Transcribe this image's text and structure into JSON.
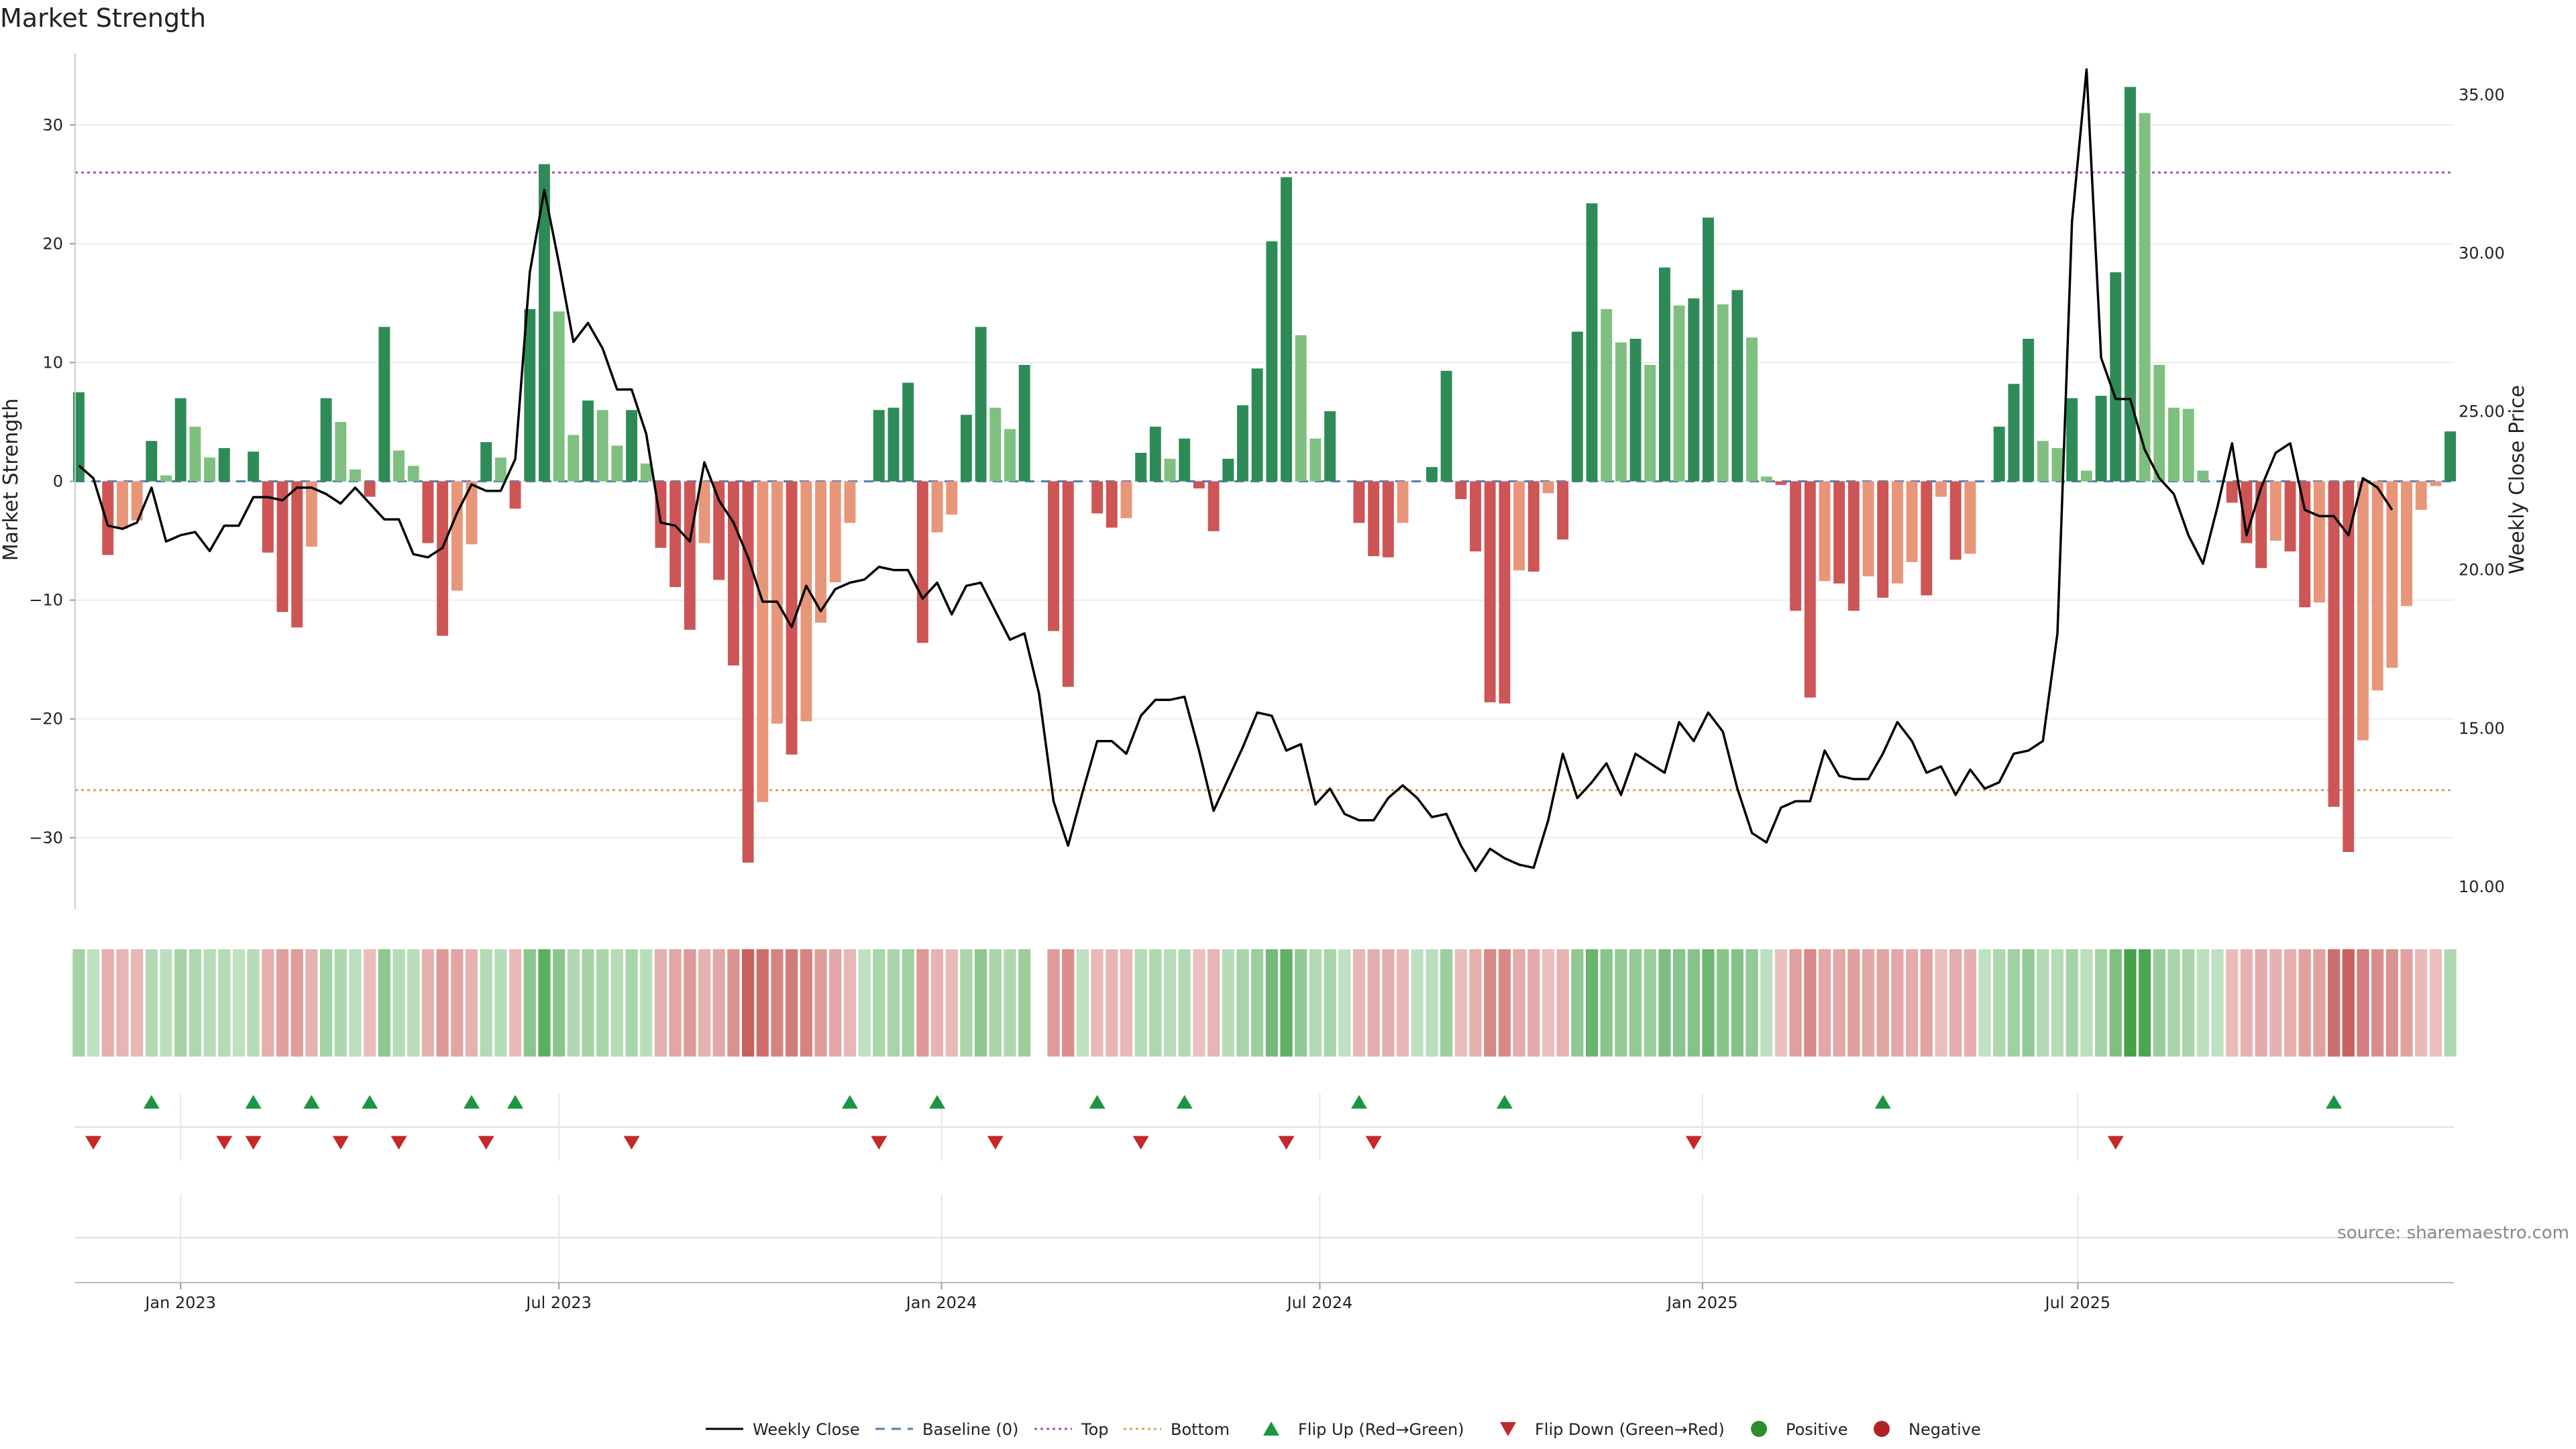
{
  "title": "Market Strength",
  "source": "source: sharemaestro.com",
  "colors": {
    "strong_green": "#2e8b57",
    "light_green": "#7fbf7f",
    "strong_red": "#cd5555",
    "light_red": "#e8967a",
    "top_line": "#b04fb0",
    "bottom_line": "#d9a25a",
    "baseline": "#4f7fb0",
    "price_line": "#000000",
    "flip_up": "#1a9641",
    "flip_down": "#c62828",
    "positive": "#2e8b2e",
    "negative": "#b22222"
  },
  "chart_data": {
    "type": "bar",
    "xlabel": "",
    "ylabel": "Market Strength",
    "y2label": "Weekly Close Price",
    "ylim": [
      -36,
      36
    ],
    "y2lim": [
      9.3,
      36.3
    ],
    "yticks": [
      30,
      20,
      10,
      0,
      -10,
      -20,
      -30
    ],
    "ytick_labels": [
      "30",
      "20",
      "10",
      "0",
      "−10",
      "−20",
      "−30"
    ],
    "y2ticks": [
      35,
      30,
      25,
      20,
      15,
      10
    ],
    "y2tick_labels": [
      "35.00",
      "30.00",
      "25.00",
      "20.00",
      "15.00",
      "10.00"
    ],
    "xticks": [
      {
        "index": 7,
        "label": "Jan 2023"
      },
      {
        "index": 33,
        "label": "Jul 2023"
      },
      {
        "index": 59.3,
        "label": "Jan 2024"
      },
      {
        "index": 85.3,
        "label": "Jul 2024"
      },
      {
        "index": 111.6,
        "label": "Jan 2025"
      },
      {
        "index": 137.4,
        "label": "Jul 2025"
      }
    ],
    "thresholds": {
      "top": 26,
      "bottom": -26,
      "baseline": 0
    },
    "grid": true,
    "legend_position": "bottom-center",
    "strength": [
      7.5,
      0,
      -6.2,
      -4,
      -3.3,
      3.4,
      0.5,
      7,
      4.6,
      2,
      2.8,
      0,
      2.5,
      -6,
      -11,
      -12.3,
      -5.5,
      7,
      5,
      1,
      -1.3,
      13,
      2.6,
      1.3,
      -5.2,
      -13,
      -9.2,
      -5.3,
      3.3,
      2,
      -2.3,
      14.5,
      26.7,
      14.3,
      3.9,
      6.8,
      6,
      3,
      6,
      1.5,
      -5.6,
      -8.9,
      -12.5,
      -5.2,
      -8.3,
      -15.5,
      -32.1,
      -27,
      -20.4,
      -23,
      -20.2,
      -11.9,
      -8.5,
      -3.5,
      0,
      6,
      6.2,
      8.3,
      -13.6,
      -4.3,
      -2.8,
      5.6,
      13,
      6.2,
      4.4,
      9.8,
      0,
      -12.6,
      -17.3,
      0,
      -2.7,
      -3.9,
      -3.1,
      2.4,
      4.6,
      1.9,
      3.6,
      -0.6,
      -4.2,
      1.9,
      6.4,
      9.5,
      20.2,
      25.6,
      12.3,
      3.6,
      5.9,
      0,
      -3.5,
      -6.3,
      -6.4,
      -3.5,
      0,
      1.2,
      9.3,
      -1.5,
      -5.9,
      -18.6,
      -18.7,
      -7.5,
      -7.6,
      -1,
      -4.9,
      12.6,
      23.4,
      14.5,
      11.7,
      12,
      9.8,
      18,
      14.8,
      15.4,
      22.2,
      14.9,
      16.1,
      12.1,
      0.4,
      -0.3,
      -10.9,
      -18.2,
      -8.4,
      -8.6,
      -10.9,
      -8,
      -9.8,
      -8.6,
      -6.8,
      -9.6,
      -1.3,
      -6.6,
      -6.1,
      0,
      4.6,
      8.2,
      12,
      3.4,
      2.8,
      7,
      0.9,
      7.2,
      17.6,
      33.2,
      31,
      9.8,
      6.2,
      6.1,
      0.9,
      0,
      -1.8,
      -5.2,
      -7.3,
      -5,
      -5.9,
      -10.6,
      -10.2,
      -27.4,
      -31.2,
      -21.8,
      -17.6,
      -15.7,
      -10.5,
      -2.4,
      -0.4,
      4.2
    ],
    "weekly_close": [
      23.3,
      22.9,
      21.4,
      21.3,
      21.5,
      22.6,
      20.9,
      21.1,
      21.2,
      20.6,
      21.4,
      21.4,
      22.3,
      22.3,
      22.2,
      22.6,
      22.6,
      22.4,
      22.1,
      22.6,
      22.1,
      21.6,
      21.6,
      20.5,
      20.4,
      20.7,
      21.8,
      22.7,
      22.5,
      22.5,
      23.5,
      29.4,
      32.0,
      29.7,
      27.2,
      27.8,
      27.0,
      25.7,
      25.7,
      24.3,
      21.5,
      21.4,
      20.9,
      23.4,
      22.2,
      21.5,
      20.4,
      19.0,
      19.0,
      18.2,
      19.5,
      18.7,
      19.4,
      19.6,
      19.7,
      20.1,
      20.0,
      20.0,
      19.1,
      19.6,
      18.6,
      19.5,
      19.6,
      18.7,
      17.8,
      18.0,
      16.1,
      12.7,
      11.3,
      13.0,
      14.6,
      14.6,
      14.2,
      15.4,
      15.9,
      15.9,
      16.0,
      14.3,
      12.4,
      13.4,
      14.4,
      15.5,
      15.4,
      14.3,
      14.5,
      12.6,
      13.1,
      12.3,
      12.1,
      12.1,
      12.8,
      13.2,
      12.8,
      12.2,
      12.3,
      11.3,
      10.5,
      11.2,
      10.9,
      10.7,
      10.6,
      12.1,
      14.2,
      12.8,
      13.3,
      13.9,
      12.9,
      14.2,
      13.9,
      13.6,
      15.2,
      14.6,
      15.5,
      14.9,
      13.1,
      11.7,
      11.4,
      12.5,
      12.7,
      12.7,
      14.3,
      13.5,
      13.4,
      13.4,
      14.2,
      15.2,
      14.6,
      13.6,
      13.8,
      12.9,
      13.7,
      13.1,
      13.3,
      14.2,
      14.3,
      14.6,
      18.0,
      31.0,
      35.8,
      26.7,
      25.4,
      25.4,
      23.8,
      22.9,
      22.4,
      21.1,
      20.2,
      22.0,
      24.0,
      21.1,
      22.6,
      23.7,
      24.0,
      21.9,
      21.7,
      21.7,
      21.1,
      22.9,
      22.6,
      21.9
    ]
  },
  "heat_strip": {
    "gap_indices": [
      66
    ]
  },
  "flips": {
    "up_indices": [
      5,
      12,
      16,
      20,
      27,
      30,
      53,
      59,
      70,
      76,
      88,
      98,
      124,
      155
    ],
    "down_indices": [
      1,
      10,
      12,
      18,
      22,
      28,
      38,
      55,
      63,
      73,
      83,
      89,
      111,
      140
    ]
  },
  "legend": [
    {
      "key": "weekly_close",
      "label": "Weekly Close",
      "kind": "line-solid",
      "color_key": "price_line"
    },
    {
      "key": "baseline",
      "label": "Baseline (0)",
      "kind": "line-dashed",
      "color_key": "baseline"
    },
    {
      "key": "top",
      "label": "Top",
      "kind": "line-dotted",
      "color_key": "top_line"
    },
    {
      "key": "bottom",
      "label": "Bottom",
      "kind": "line-dotted",
      "color_key": "bottom_line"
    },
    {
      "key": "flip_up",
      "label": "Flip Up (Red→Green)",
      "kind": "tri-up",
      "color_key": "flip_up"
    },
    {
      "key": "flip_down",
      "label": "Flip Down (Green→Red)",
      "kind": "tri-down",
      "color_key": "flip_down"
    },
    {
      "key": "positive",
      "label": "Positive",
      "kind": "dot",
      "color_key": "positive"
    },
    {
      "key": "negative",
      "label": "Negative",
      "kind": "dot",
      "color_key": "negative"
    }
  ]
}
